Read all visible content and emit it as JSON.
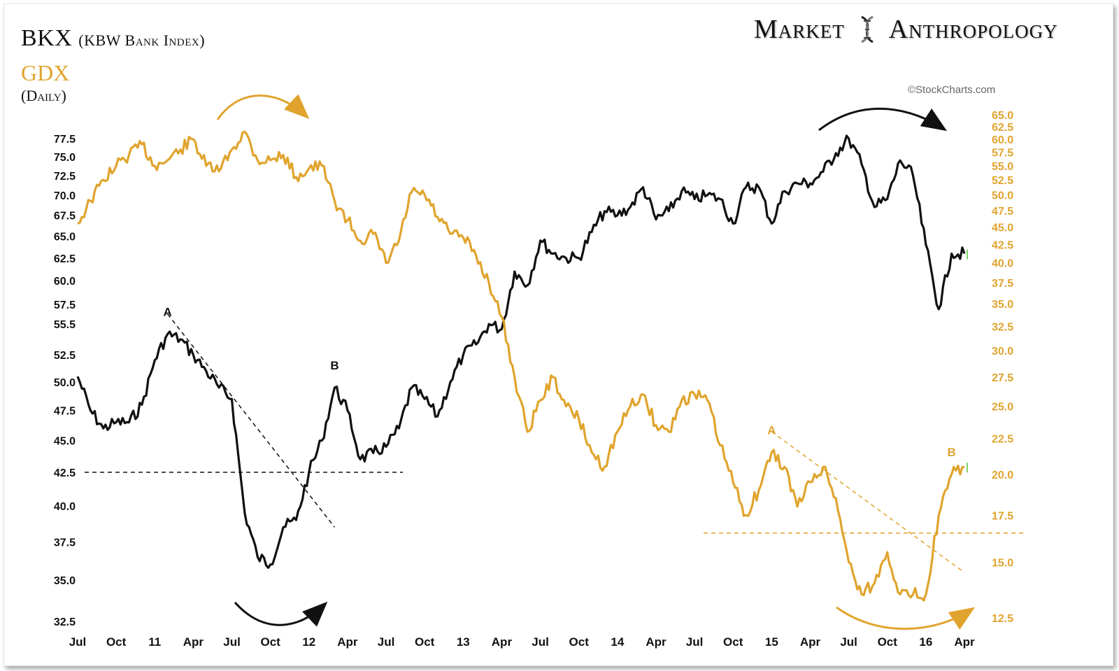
{
  "header": {
    "title": "BKX",
    "title_sub": "(KBW Bank Index)",
    "secondary": "GDX",
    "period": "(Daily)",
    "brand_left": "Market",
    "brand_right": "Anthropology",
    "brand_icon": "dna-helix-icon",
    "credit": "©StockCharts.com"
  },
  "colors": {
    "bkx": "#111111",
    "gdx": "#e0a42e",
    "latest": "#7fd36b"
  },
  "chart_data": {
    "type": "line",
    "x_tick_labels": [
      "Jul",
      "Oct",
      "11",
      "Apr",
      "Jul",
      "Oct",
      "12",
      "Apr",
      "Jul",
      "Oct",
      "13",
      "Apr",
      "Jul",
      "Oct",
      "14",
      "Apr",
      "Jul",
      "Oct",
      "15",
      "Apr",
      "Jul",
      "Oct",
      "16",
      "Apr"
    ],
    "x_range_months": [
      "2010-07",
      "2016-04"
    ],
    "y_left": {
      "label": "",
      "series": "BKX",
      "scale": "log",
      "ticks": [
        "77.5",
        "75.0",
        "72.5",
        "70.0",
        "67.5",
        "65.0",
        "62.5",
        "60.0",
        "57.5",
        "55.5",
        "52.5",
        "50.0",
        "47.5",
        "45.0",
        "42.5",
        "40.0",
        "37.5",
        "35.0",
        "32.5"
      ]
    },
    "y_right": {
      "label": "",
      "series": "GDX",
      "scale": "log",
      "ticks": [
        "65.0",
        "62.5",
        "60.0",
        "57.5",
        "55.0",
        "52.5",
        "50.0",
        "47.5",
        "45.0",
        "42.5",
        "40.0",
        "37.5",
        "35.0",
        "32.5",
        "30.0",
        "27.5",
        "25.0",
        "22.5",
        "20.0",
        "17.5",
        "15.0",
        "12.5"
      ]
    },
    "series": [
      {
        "name": "BKX",
        "axis": "left",
        "points": [
          [
            "2010-07",
            50.5
          ],
          [
            "2010-08",
            47.5
          ],
          [
            "2010-09",
            46.0
          ],
          [
            "2010-10",
            46.5
          ],
          [
            "2010-11",
            46.5
          ],
          [
            "2010-12",
            48.0
          ],
          [
            "2011-01",
            52.0
          ],
          [
            "2011-02",
            54.5
          ],
          [
            "2011-03",
            54.0
          ],
          [
            "2011-04",
            52.5
          ],
          [
            "2011-05",
            51.0
          ],
          [
            "2011-06",
            49.5
          ],
          [
            "2011-07",
            48.5
          ],
          [
            "2011-08",
            39.5
          ],
          [
            "2011-09",
            36.5
          ],
          [
            "2011-10",
            36.0
          ],
          [
            "2011-11",
            38.5
          ],
          [
            "2011-12",
            39.0
          ],
          [
            "2012-01",
            42.5
          ],
          [
            "2012-02",
            45.0
          ],
          [
            "2012-03",
            49.5
          ],
          [
            "2012-04",
            47.5
          ],
          [
            "2012-05",
            43.5
          ],
          [
            "2012-06",
            44.0
          ],
          [
            "2012-07",
            44.5
          ],
          [
            "2012-08",
            46.0
          ],
          [
            "2012-09",
            49.5
          ],
          [
            "2012-10",
            48.5
          ],
          [
            "2012-11",
            47.0
          ],
          [
            "2012-12",
            50.0
          ],
          [
            "2013-01",
            52.5
          ],
          [
            "2013-02",
            53.5
          ],
          [
            "2013-03",
            55.5
          ],
          [
            "2013-04",
            55.0
          ],
          [
            "2013-05",
            61.0
          ],
          [
            "2013-06",
            59.5
          ],
          [
            "2013-07",
            64.5
          ],
          [
            "2013-08",
            63.0
          ],
          [
            "2013-09",
            62.5
          ],
          [
            "2013-10",
            62.5
          ],
          [
            "2013-11",
            65.5
          ],
          [
            "2013-12",
            68.0
          ],
          [
            "2014-01",
            67.5
          ],
          [
            "2014-02",
            68.5
          ],
          [
            "2014-03",
            71.0
          ],
          [
            "2014-04",
            67.0
          ],
          [
            "2014-05",
            68.0
          ],
          [
            "2014-06",
            70.5
          ],
          [
            "2014-07",
            69.5
          ],
          [
            "2014-08",
            70.0
          ],
          [
            "2014-09",
            69.5
          ],
          [
            "2014-10",
            66.5
          ],
          [
            "2014-11",
            71.0
          ],
          [
            "2014-12",
            71.0
          ],
          [
            "2015-01",
            66.5
          ],
          [
            "2015-02",
            70.5
          ],
          [
            "2015-03",
            71.5
          ],
          [
            "2015-04",
            71.5
          ],
          [
            "2015-05",
            73.0
          ],
          [
            "2015-06",
            75.5
          ],
          [
            "2015-07",
            77.5
          ],
          [
            "2015-08",
            74.0
          ],
          [
            "2015-09",
            68.5
          ],
          [
            "2015-10",
            69.5
          ],
          [
            "2015-11",
            74.5
          ],
          [
            "2015-12",
            72.5
          ],
          [
            "2016-01",
            64.0
          ],
          [
            "2016-02",
            57.0
          ],
          [
            "2016-03",
            63.0
          ],
          [
            "2016-04",
            63.0
          ]
        ]
      },
      {
        "name": "GDX",
        "axis": "right",
        "points": [
          [
            "2010-07",
            45.5
          ],
          [
            "2010-08",
            49.0
          ],
          [
            "2010-09",
            52.5
          ],
          [
            "2010-10",
            55.0
          ],
          [
            "2010-11",
            57.0
          ],
          [
            "2010-12",
            59.0
          ],
          [
            "2011-01",
            55.0
          ],
          [
            "2011-02",
            56.0
          ],
          [
            "2011-03",
            58.0
          ],
          [
            "2011-04",
            60.0
          ],
          [
            "2011-05",
            55.0
          ],
          [
            "2011-06",
            54.0
          ],
          [
            "2011-07",
            58.0
          ],
          [
            "2011-08",
            61.5
          ],
          [
            "2011-09",
            56.0
          ],
          [
            "2011-10",
            56.0
          ],
          [
            "2011-11",
            57.0
          ],
          [
            "2011-12",
            53.0
          ],
          [
            "2012-01",
            54.5
          ],
          [
            "2012-02",
            55.0
          ],
          [
            "2012-03",
            49.0
          ],
          [
            "2012-04",
            46.0
          ],
          [
            "2012-05",
            43.0
          ],
          [
            "2012-06",
            44.0
          ],
          [
            "2012-07",
            40.0
          ],
          [
            "2012-08",
            43.0
          ],
          [
            "2012-09",
            50.5
          ],
          [
            "2012-10",
            50.0
          ],
          [
            "2012-11",
            46.5
          ],
          [
            "2012-12",
            44.0
          ],
          [
            "2013-01",
            43.5
          ],
          [
            "2013-02",
            41.0
          ],
          [
            "2013-03",
            37.5
          ],
          [
            "2013-04",
            33.5
          ],
          [
            "2013-05",
            27.5
          ],
          [
            "2013-06",
            23.0
          ],
          [
            "2013-07",
            25.5
          ],
          [
            "2013-08",
            27.5
          ],
          [
            "2013-09",
            25.0
          ],
          [
            "2013-10",
            24.0
          ],
          [
            "2013-11",
            21.5
          ],
          [
            "2013-12",
            20.5
          ],
          [
            "2014-01",
            23.0
          ],
          [
            "2014-02",
            25.0
          ],
          [
            "2014-03",
            26.0
          ],
          [
            "2014-04",
            23.5
          ],
          [
            "2014-05",
            23.0
          ],
          [
            "2014-06",
            25.5
          ],
          [
            "2014-07",
            26.0
          ],
          [
            "2014-08",
            25.5
          ],
          [
            "2014-09",
            22.0
          ],
          [
            "2014-10",
            19.5
          ],
          [
            "2014-11",
            17.5
          ],
          [
            "2014-12",
            19.0
          ],
          [
            "2015-01",
            21.5
          ],
          [
            "2015-02",
            20.5
          ],
          [
            "2015-03",
            18.0
          ],
          [
            "2015-04",
            19.5
          ],
          [
            "2015-05",
            20.5
          ],
          [
            "2015-06",
            18.5
          ],
          [
            "2015-07",
            15.0
          ],
          [
            "2015-08",
            13.5
          ],
          [
            "2015-09",
            14.0
          ],
          [
            "2015-10",
            15.5
          ],
          [
            "2015-11",
            13.5
          ],
          [
            "2015-12",
            13.5
          ],
          [
            "2016-01",
            13.5
          ],
          [
            "2016-02",
            17.5
          ],
          [
            "2016-03",
            20.0
          ],
          [
            "2016-04",
            20.5
          ]
        ]
      }
    ],
    "annotations": [
      {
        "label": "A",
        "series": "BKX",
        "at": "2011-02"
      },
      {
        "label": "B",
        "series": "BKX",
        "at": "2012-03"
      },
      {
        "label": "A",
        "series": "GDX",
        "at": "2015-01"
      },
      {
        "label": "B",
        "series": "GDX",
        "at": "2016-03"
      }
    ],
    "reference_lines": [
      {
        "series": "BKX",
        "type": "horizontal",
        "value": 42.5
      },
      {
        "series": "BKX",
        "type": "trendline",
        "from": [
          "2011-02",
          56.5
        ],
        "to": [
          "2012-03",
          38.5
        ]
      },
      {
        "series": "GDX",
        "type": "horizontal",
        "value": 16.5
      },
      {
        "series": "GDX",
        "type": "trendline",
        "from": [
          "2015-01",
          23.0
        ],
        "to": [
          "2016-04",
          14.5
        ]
      }
    ],
    "grid": false,
    "legend": "none"
  }
}
